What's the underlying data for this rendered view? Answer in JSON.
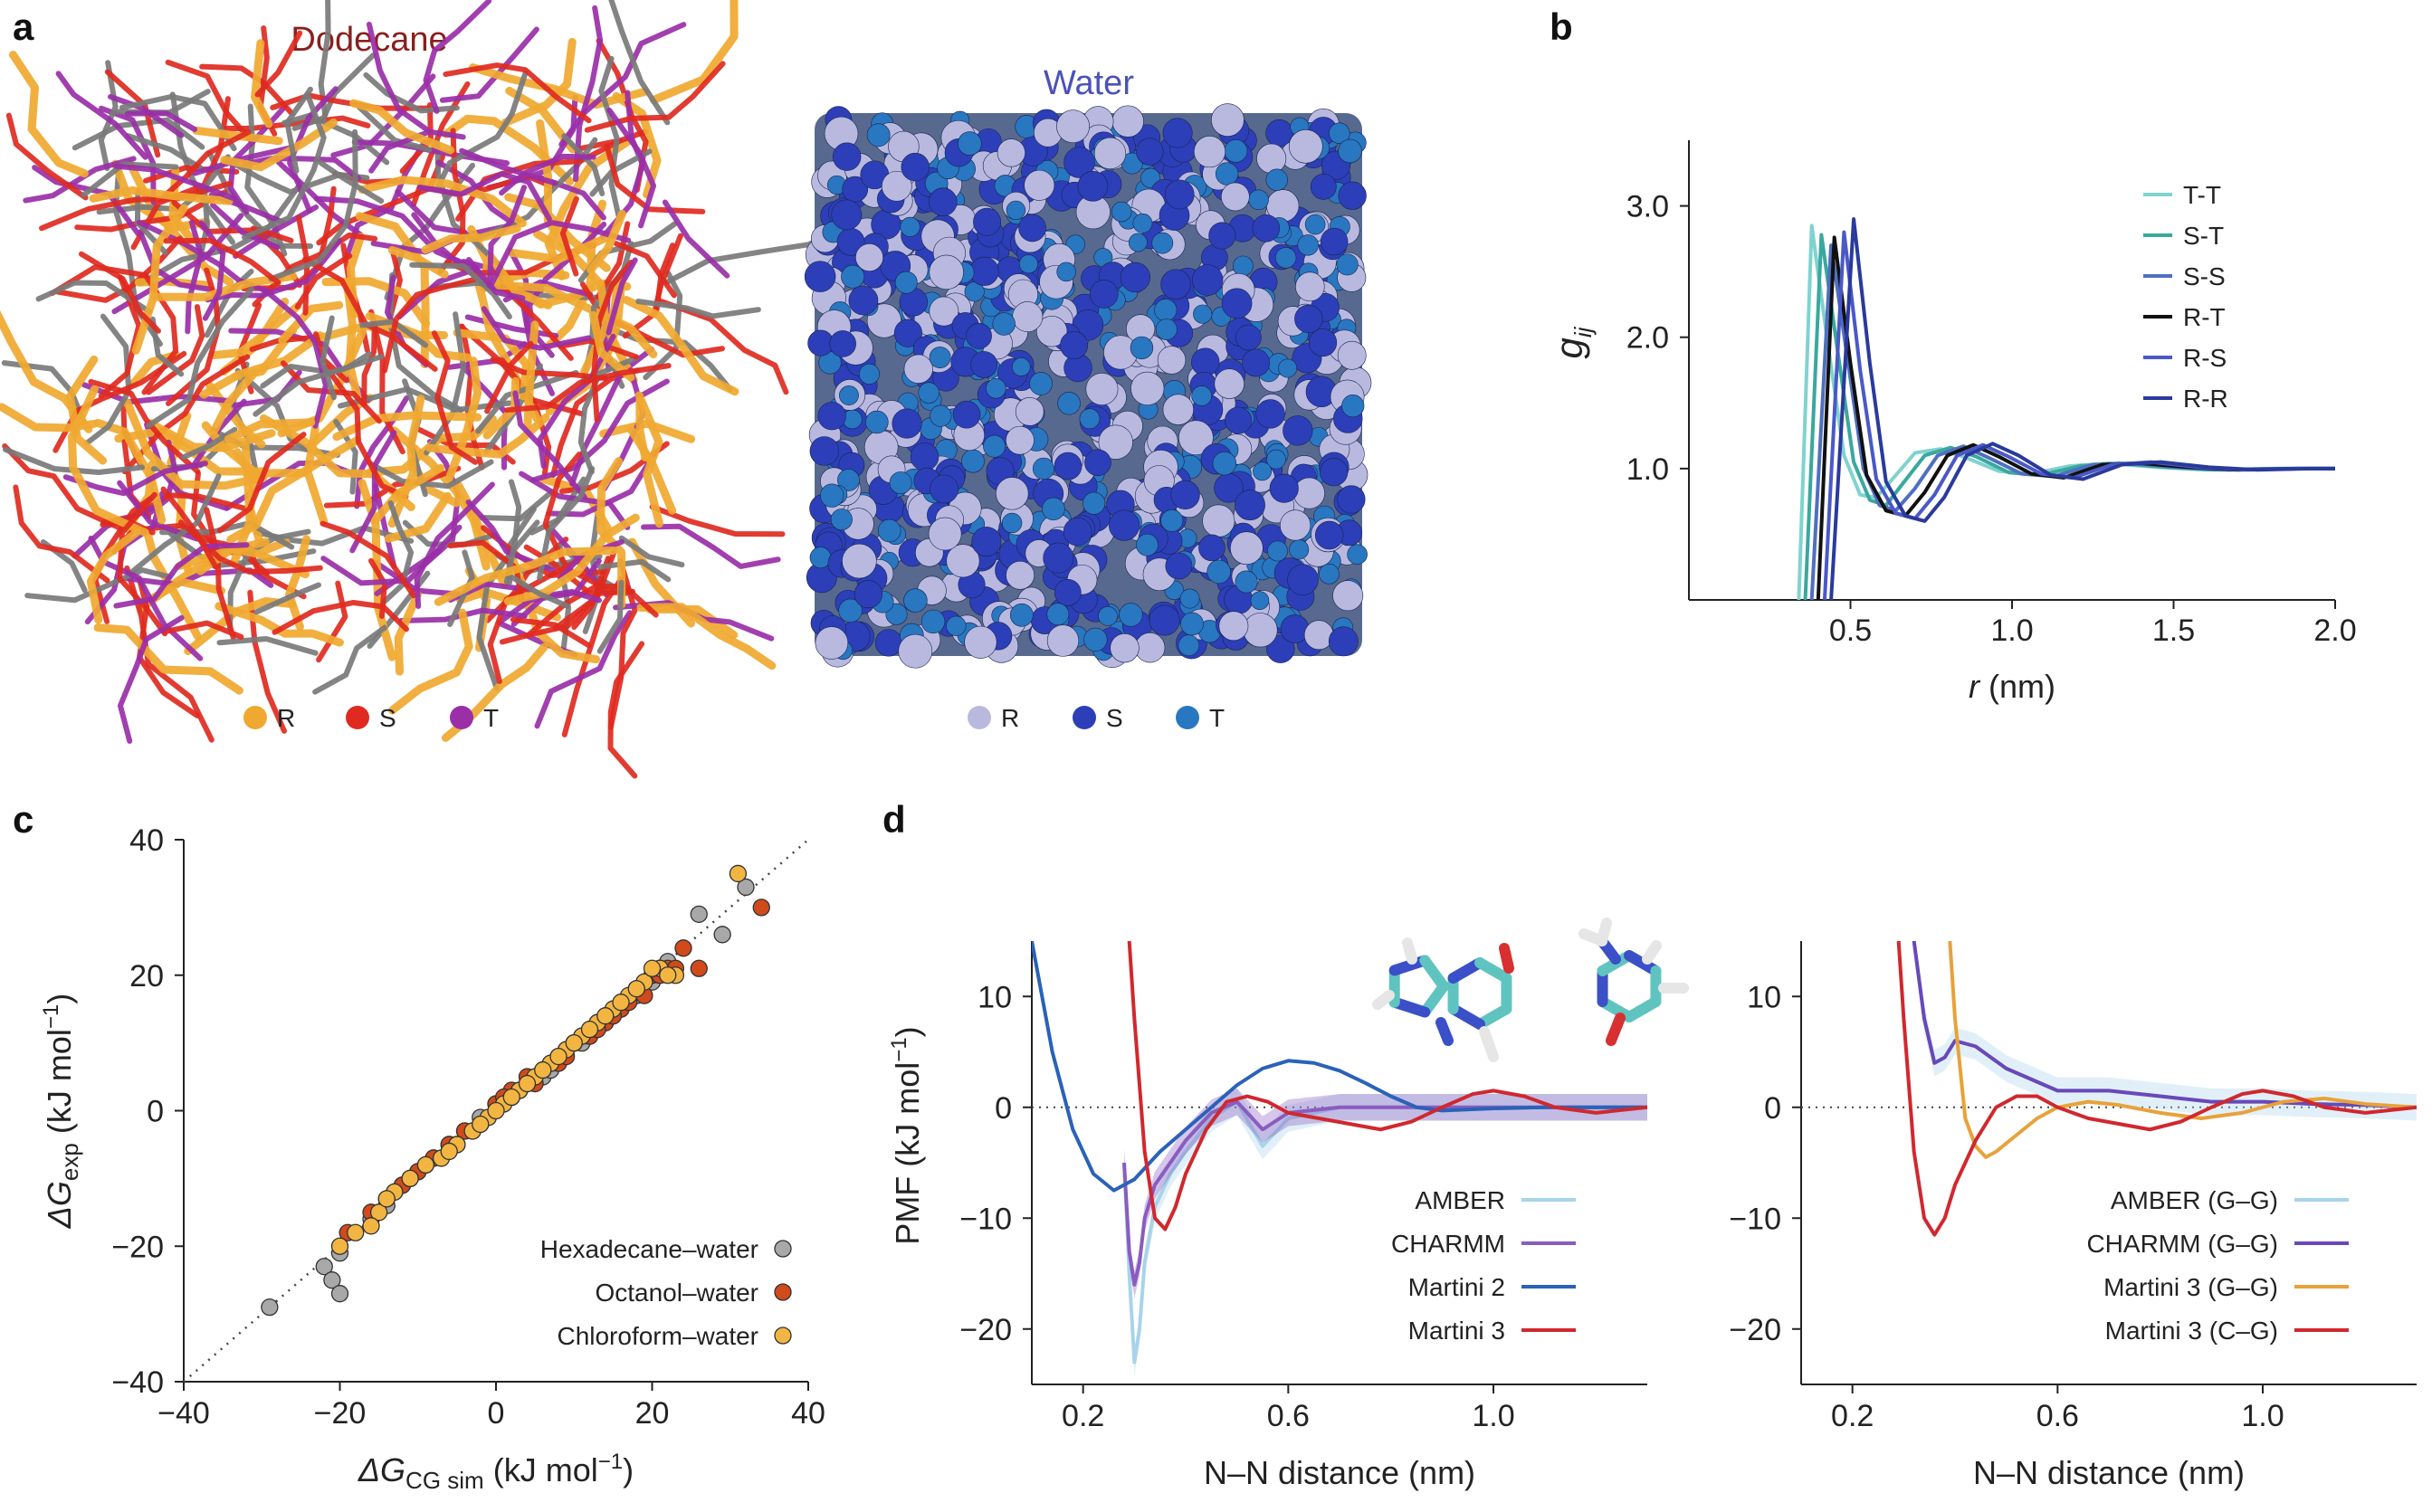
{
  "panels": {
    "a": {
      "label": "a",
      "left_title": "Dodecane",
      "right_title": "Water",
      "left_legend": [
        {
          "label": "R",
          "color": "#f0a830"
        },
        {
          "label": "S",
          "color": "#e02a20"
        },
        {
          "label": "T",
          "color": "#9a2fa8"
        }
      ],
      "right_legend": [
        {
          "label": "R",
          "color": "#b9b9e0"
        },
        {
          "label": "S",
          "color": "#2c3fb8"
        },
        {
          "label": "T",
          "color": "#2877c0"
        }
      ]
    },
    "b": {
      "label": "b"
    },
    "c": {
      "label": "c"
    },
    "d": {
      "label": "d"
    }
  },
  "chart_data": [
    {
      "id": "b",
      "type": "line",
      "xlabel_main": "r",
      "xlabel_unit": " (nm)",
      "ylabel_main": "g",
      "ylabel_sub": "ij",
      "xlim": [
        0,
        2.0
      ],
      "ylim": [
        0,
        3.5
      ],
      "xticks": [
        0.5,
        1.0,
        1.5,
        2.0
      ],
      "xtick_labels": [
        "0.5",
        "1.0",
        "1.5",
        "2.0"
      ],
      "yticks": [
        1.0,
        2.0,
        3.0
      ],
      "ytick_labels": [
        "1.0",
        "2.0",
        "3.0"
      ],
      "legend_position": "top-right",
      "series": [
        {
          "name": "T-T",
          "color": "#7fd3cf",
          "x": [
            0.34,
            0.38,
            0.43,
            0.48,
            0.53,
            0.58,
            0.63,
            0.7,
            0.78,
            0.86,
            0.96,
            1.06,
            1.18,
            1.3,
            1.45,
            1.6,
            1.8,
            2.0
          ],
          "y": [
            0,
            2.85,
            1.95,
            1.1,
            0.8,
            0.78,
            0.92,
            1.12,
            1.15,
            1.08,
            0.98,
            0.96,
            1.02,
            1.04,
            1.01,
            0.99,
            1.0,
            1.0
          ]
        },
        {
          "name": "S-T",
          "color": "#3aa89e",
          "x": [
            0.36,
            0.41,
            0.46,
            0.51,
            0.56,
            0.61,
            0.66,
            0.73,
            0.81,
            0.89,
            0.99,
            1.09,
            1.21,
            1.33,
            1.48,
            1.63,
            1.82,
            2.0
          ],
          "y": [
            0,
            2.78,
            1.9,
            1.05,
            0.76,
            0.72,
            0.88,
            1.1,
            1.16,
            1.09,
            0.97,
            0.95,
            1.02,
            1.04,
            1.01,
            0.99,
            1.0,
            1.0
          ]
        },
        {
          "name": "S-S",
          "color": "#4f6fc0",
          "x": [
            0.38,
            0.44,
            0.49,
            0.54,
            0.59,
            0.64,
            0.7,
            0.77,
            0.85,
            0.93,
            1.03,
            1.13,
            1.25,
            1.37,
            1.52,
            1.67,
            1.85,
            2.0
          ],
          "y": [
            0,
            2.7,
            1.85,
            1.0,
            0.72,
            0.68,
            0.85,
            1.1,
            1.17,
            1.08,
            0.96,
            0.94,
            1.03,
            1.04,
            1.01,
            0.99,
            1.0,
            1.0
          ]
        },
        {
          "name": "R-T",
          "color": "#111111",
          "x": [
            0.4,
            0.45,
            0.5,
            0.55,
            0.61,
            0.67,
            0.73,
            0.8,
            0.88,
            0.96,
            1.06,
            1.16,
            1.28,
            1.4,
            1.55,
            1.7,
            1.88,
            2.0
          ],
          "y": [
            0,
            2.76,
            1.8,
            0.95,
            0.68,
            0.64,
            0.82,
            1.1,
            1.18,
            1.09,
            0.96,
            0.93,
            1.03,
            1.04,
            1.01,
            0.99,
            1.0,
            1.0
          ]
        },
        {
          "name": "R-S",
          "color": "#4a58c8",
          "x": [
            0.42,
            0.48,
            0.53,
            0.58,
            0.64,
            0.7,
            0.76,
            0.83,
            0.91,
            0.99,
            1.09,
            1.19,
            1.31,
            1.43,
            1.58,
            1.73,
            1.9,
            2.0
          ],
          "y": [
            0,
            2.8,
            1.75,
            0.92,
            0.66,
            0.62,
            0.8,
            1.1,
            1.18,
            1.09,
            0.96,
            0.93,
            1.03,
            1.05,
            1.01,
            0.99,
            1.0,
            1.0
          ]
        },
        {
          "name": "R-R",
          "color": "#2a3a9c",
          "x": [
            0.44,
            0.51,
            0.56,
            0.61,
            0.67,
            0.73,
            0.79,
            0.86,
            0.94,
            1.02,
            1.12,
            1.22,
            1.34,
            1.46,
            1.61,
            1.76,
            1.92,
            2.0
          ],
          "y": [
            0,
            2.9,
            1.8,
            0.9,
            0.64,
            0.6,
            0.78,
            1.1,
            1.19,
            1.1,
            0.95,
            0.92,
            1.03,
            1.05,
            1.01,
            0.99,
            1.0,
            1.0
          ]
        }
      ]
    },
    {
      "id": "c",
      "type": "scatter",
      "xlabel_main": "ΔG",
      "xlabel_sub": "CG sim",
      "xlabel_unit": " (kJ mol",
      "xlabel_sup": "−1",
      "xlabel_close": ")",
      "ylabel_main": "ΔG",
      "ylabel_sub": "exp",
      "ylabel_unit": " (kJ mol",
      "ylabel_sup": "−1",
      "ylabel_close": ")",
      "xlim": [
        -40,
        40
      ],
      "ylim": [
        -40,
        40
      ],
      "xticks": [
        -40,
        -20,
        0,
        20,
        40
      ],
      "xtick_labels": [
        "−40",
        "−20",
        "0",
        "20",
        "40"
      ],
      "yticks": [
        -40,
        -20,
        0,
        20,
        40
      ],
      "ytick_labels": [
        "−40",
        "−20",
        "0",
        "20",
        "40"
      ],
      "diagonal": true,
      "legend_position": "bottom-right",
      "series": [
        {
          "name": "Hexadecane–water",
          "color": "#a8a8a8",
          "x": [
            -29,
            -22,
            -21,
            -20,
            -20,
            -14,
            -13,
            -12,
            -10,
            -8,
            -6,
            -4,
            -2,
            0,
            2,
            4,
            6,
            8,
            10,
            12,
            14,
            16,
            18,
            20,
            22,
            26,
            29,
            32,
            -16,
            -9,
            -3,
            3,
            9,
            15,
            21,
            7,
            11,
            13
          ],
          "y": [
            -29,
            -23,
            -25,
            -27,
            -21,
            -14,
            -12,
            -11,
            -9,
            -7,
            -5,
            -3,
            -1,
            1,
            2,
            4,
            5,
            8,
            10,
            12,
            13,
            15,
            17,
            19,
            22,
            29,
            26,
            33,
            -16,
            -8,
            -3,
            3,
            9,
            14,
            21,
            6,
            10,
            13
          ]
        },
        {
          "name": "Octanol–water",
          "color": "#d04a1c",
          "x": [
            -19,
            -16,
            -14,
            -12,
            -10,
            -8,
            -6,
            -4,
            -2,
            0,
            2,
            4,
            6,
            8,
            10,
            12,
            14,
            16,
            18,
            20,
            22,
            24,
            26,
            34,
            -11,
            -5,
            1,
            3,
            5,
            7,
            9,
            11,
            13,
            15,
            17,
            19,
            21,
            23
          ],
          "y": [
            -18,
            -15,
            -13,
            -11,
            -9,
            -7,
            -5,
            -3,
            -2,
            1,
            3,
            5,
            6,
            7,
            10,
            11,
            13,
            15,
            18,
            20,
            21,
            24,
            21,
            30,
            -10,
            -5,
            2,
            3,
            4,
            7,
            8,
            11,
            12,
            14,
            16,
            17,
            20,
            21
          ]
        },
        {
          "name": "Chloroform–water",
          "color": "#f3b542",
          "x": [
            -20,
            -18,
            -15,
            -13,
            -11,
            -9,
            -7,
            -5,
            -3,
            -1,
            1,
            3,
            5,
            7,
            9,
            11,
            13,
            15,
            17,
            19,
            21,
            23,
            31,
            -16,
            -6,
            0,
            4,
            8,
            12,
            16,
            20,
            22,
            -14,
            -2,
            2,
            6,
            10,
            14,
            18
          ],
          "y": [
            -20,
            -18,
            -15,
            -12,
            -10,
            -8,
            -7,
            -5,
            -3,
            -1,
            1,
            3,
            5,
            7,
            9,
            11,
            13,
            15,
            17,
            19,
            21,
            20,
            35,
            -17,
            -6,
            0,
            4,
            8,
            12,
            16,
            21,
            20,
            -13,
            -2,
            2,
            6,
            10,
            14,
            18
          ]
        }
      ],
      "legend_entries": [
        "Hexadecane–water",
        "Octanol–water",
        "Chloroform–water"
      ]
    },
    {
      "id": "d_left",
      "type": "line",
      "xlabel": "N–N distance (nm)",
      "ylabel_main": "PMF (kJ mol",
      "ylabel_sup": "−1",
      "ylabel_close": ")",
      "xlim": [
        0.1,
        1.3
      ],
      "ylim": [
        -25,
        15
      ],
      "xticks": [
        0.2,
        0.6,
        1.0
      ],
      "xtick_labels": [
        "0.2",
        "0.6",
        "1.0"
      ],
      "yticks": [
        -20,
        -10,
        0,
        10
      ],
      "ytick_labels": [
        "−20",
        "−10",
        "0",
        "10"
      ],
      "zero_line": true,
      "legend_position": "bottom-right",
      "series": [
        {
          "name": "AMBER",
          "color": "#a8d4ea",
          "band": true,
          "x": [
            0.28,
            0.29,
            0.3,
            0.31,
            0.32,
            0.34,
            0.37,
            0.4,
            0.45,
            0.5,
            0.55,
            0.6,
            0.7,
            0.8,
            0.9,
            1.0,
            1.1,
            1.2,
            1.3
          ],
          "y": [
            -5,
            -15,
            -23,
            -20,
            -14,
            -9,
            -6,
            -4,
            -1,
            0.5,
            -3.5,
            -1,
            0,
            0,
            0,
            0,
            0,
            0,
            0
          ]
        },
        {
          "name": "CHARMM",
          "color": "#8a5cc0",
          "band": true,
          "x": [
            0.28,
            0.29,
            0.3,
            0.31,
            0.32,
            0.34,
            0.37,
            0.4,
            0.45,
            0.5,
            0.55,
            0.6,
            0.7,
            0.8,
            0.9,
            1.0,
            1.1,
            1.2,
            1.3
          ],
          "y": [
            -5,
            -13,
            -16,
            -14,
            -10,
            -7,
            -5,
            -3,
            -0.5,
            0.5,
            -2,
            -0.5,
            0,
            0,
            0,
            0,
            0,
            0,
            0
          ]
        },
        {
          "name": "Martini 2",
          "color": "#2a62b8",
          "x": [
            0.1,
            0.14,
            0.18,
            0.22,
            0.26,
            0.3,
            0.35,
            0.4,
            0.45,
            0.5,
            0.55,
            0.6,
            0.65,
            0.7,
            0.75,
            0.8,
            0.85,
            0.9,
            1.0,
            1.1,
            1.2,
            1.3
          ],
          "y": [
            15,
            5,
            -2,
            -6,
            -7.5,
            -6.5,
            -4,
            -2,
            0,
            2,
            3.5,
            4.2,
            4,
            3.3,
            2.2,
            1,
            0,
            -0.3,
            -0.1,
            0,
            0,
            0
          ]
        },
        {
          "name": "Martini 3",
          "color": "#d0282e",
          "x": [
            0.29,
            0.3,
            0.32,
            0.34,
            0.36,
            0.38,
            0.4,
            0.44,
            0.48,
            0.52,
            0.56,
            0.6,
            0.66,
            0.72,
            0.78,
            0.84,
            0.9,
            0.96,
            1.0,
            1.06,
            1.12,
            1.2,
            1.3
          ],
          "y": [
            15,
            8,
            -4,
            -10,
            -11,
            -9,
            -6,
            -2,
            0.5,
            1,
            0.5,
            -0.5,
            -1,
            -1.5,
            -2,
            -1.3,
            0,
            1.2,
            1.5,
            1,
            0,
            -0.5,
            0
          ]
        }
      ]
    },
    {
      "id": "d_right",
      "type": "line",
      "xlabel": "N–N distance (nm)",
      "xlim": [
        0.1,
        1.3
      ],
      "ylim": [
        -25,
        15
      ],
      "xticks": [
        0.2,
        0.6,
        1.0
      ],
      "xtick_labels": [
        "0.2",
        "0.6",
        "1.0"
      ],
      "yticks": [
        -20,
        -10,
        0,
        10
      ],
      "ytick_labels": [
        "−20",
        "−10",
        "0",
        "10"
      ],
      "zero_line": true,
      "legend_position": "bottom-right",
      "series": [
        {
          "name": "AMBER (G–G)",
          "color": "#a8d4ea",
          "band": true,
          "x": [
            0.32,
            0.34,
            0.36,
            0.38,
            0.4,
            0.44,
            0.5,
            0.6,
            0.7,
            0.8,
            0.9,
            1.0,
            1.1,
            1.2,
            1.3
          ],
          "y": [
            15,
            8,
            4,
            4.5,
            6,
            5.5,
            3.5,
            1.5,
            1.5,
            1,
            0.5,
            0.5,
            0.3,
            0.2,
            0
          ]
        },
        {
          "name": "CHARMM (G–G)",
          "color": "#6a48b8",
          "x": [
            0.32,
            0.34,
            0.36,
            0.38,
            0.4,
            0.44,
            0.5,
            0.6,
            0.7,
            0.8,
            0.9,
            1.0,
            1.1,
            1.2,
            1.3
          ],
          "y": [
            15,
            8,
            4,
            4.5,
            6,
            5.5,
            3.5,
            1.5,
            1.5,
            1,
            0.5,
            0.5,
            0.3,
            0.2,
            0
          ]
        },
        {
          "name": "Martini 3 (G–G)",
          "color": "#e8a23a",
          "x": [
            0.39,
            0.4,
            0.42,
            0.44,
            0.46,
            0.48,
            0.52,
            0.56,
            0.6,
            0.66,
            0.72,
            0.8,
            0.88,
            0.96,
            1.04,
            1.12,
            1.2,
            1.3
          ],
          "y": [
            15,
            8,
            -1,
            -3.5,
            -4.5,
            -4,
            -2.5,
            -1,
            0,
            0.5,
            0.2,
            -0.5,
            -1,
            -0.5,
            0.5,
            0.8,
            0.3,
            0
          ]
        },
        {
          "name": "Martini 3 (C–G)",
          "color": "#d0282e",
          "x": [
            0.29,
            0.3,
            0.32,
            0.34,
            0.36,
            0.38,
            0.4,
            0.44,
            0.48,
            0.52,
            0.56,
            0.6,
            0.66,
            0.72,
            0.78,
            0.84,
            0.9,
            0.96,
            1.0,
            1.06,
            1.12,
            1.2,
            1.3
          ],
          "y": [
            15,
            8,
            -4,
            -10,
            -11.5,
            -10,
            -7,
            -3,
            0,
            1,
            1,
            0,
            -1,
            -1.5,
            -2,
            -1.3,
            0,
            1.2,
            1.5,
            1,
            0,
            -0.5,
            0
          ]
        }
      ]
    }
  ]
}
